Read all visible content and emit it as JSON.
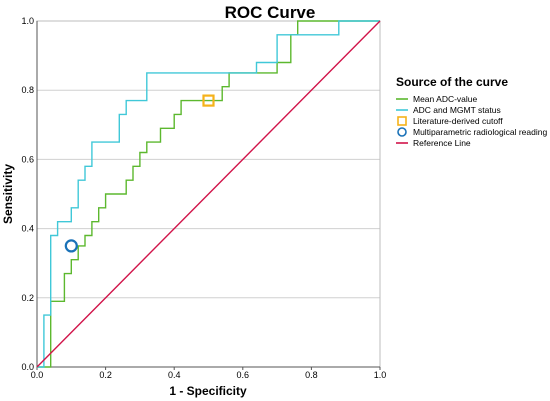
{
  "chart_data": {
    "type": "line",
    "title": "ROC Curve",
    "xlabel": "1 - Specificity",
    "ylabel": "Sensitivity",
    "xlim": [
      0,
      1
    ],
    "ylim": [
      0,
      1
    ],
    "x_ticks": [
      "0.0",
      "0.2",
      "0.4",
      "0.6",
      "0.8",
      "1.0"
    ],
    "y_ticks": [
      "0.0",
      "0.2",
      "0.4",
      "0.6",
      "0.8",
      "1.0"
    ],
    "grid": "horizontal",
    "legend_title": "Source of the curve",
    "legend_position": "right",
    "series": [
      {
        "name": "Mean ADC-value",
        "kind": "step-line",
        "color": "#5cb82e",
        "points": [
          [
            0,
            0
          ],
          [
            0.04,
            0
          ],
          [
            0.04,
            0.19
          ],
          [
            0.08,
            0.19
          ],
          [
            0.08,
            0.27
          ],
          [
            0.1,
            0.27
          ],
          [
            0.1,
            0.31
          ],
          [
            0.12,
            0.31
          ],
          [
            0.12,
            0.35
          ],
          [
            0.14,
            0.35
          ],
          [
            0.14,
            0.38
          ],
          [
            0.16,
            0.38
          ],
          [
            0.16,
            0.42
          ],
          [
            0.18,
            0.42
          ],
          [
            0.18,
            0.46
          ],
          [
            0.2,
            0.46
          ],
          [
            0.2,
            0.5
          ],
          [
            0.26,
            0.5
          ],
          [
            0.26,
            0.54
          ],
          [
            0.28,
            0.54
          ],
          [
            0.28,
            0.58
          ],
          [
            0.3,
            0.58
          ],
          [
            0.3,
            0.62
          ],
          [
            0.32,
            0.62
          ],
          [
            0.32,
            0.65
          ],
          [
            0.36,
            0.65
          ],
          [
            0.36,
            0.69
          ],
          [
            0.4,
            0.69
          ],
          [
            0.4,
            0.73
          ],
          [
            0.42,
            0.73
          ],
          [
            0.42,
            0.77
          ],
          [
            0.54,
            0.77
          ],
          [
            0.54,
            0.81
          ],
          [
            0.56,
            0.81
          ],
          [
            0.56,
            0.85
          ],
          [
            0.7,
            0.85
          ],
          [
            0.7,
            0.88
          ],
          [
            0.74,
            0.88
          ],
          [
            0.74,
            0.96
          ],
          [
            0.76,
            0.96
          ],
          [
            0.76,
            1.0
          ],
          [
            1.0,
            1.0
          ]
        ]
      },
      {
        "name": "ADC and MGMT status",
        "kind": "step-line",
        "color": "#40c8d8",
        "points": [
          [
            0,
            0
          ],
          [
            0.02,
            0
          ],
          [
            0.02,
            0.15
          ],
          [
            0.04,
            0.15
          ],
          [
            0.04,
            0.38
          ],
          [
            0.06,
            0.38
          ],
          [
            0.06,
            0.42
          ],
          [
            0.1,
            0.42
          ],
          [
            0.1,
            0.46
          ],
          [
            0.12,
            0.46
          ],
          [
            0.12,
            0.54
          ],
          [
            0.14,
            0.54
          ],
          [
            0.14,
            0.58
          ],
          [
            0.16,
            0.58
          ],
          [
            0.16,
            0.65
          ],
          [
            0.24,
            0.65
          ],
          [
            0.24,
            0.73
          ],
          [
            0.26,
            0.73
          ],
          [
            0.26,
            0.77
          ],
          [
            0.32,
            0.77
          ],
          [
            0.32,
            0.85
          ],
          [
            0.64,
            0.85
          ],
          [
            0.64,
            0.88
          ],
          [
            0.7,
            0.88
          ],
          [
            0.7,
            0.96
          ],
          [
            0.88,
            0.96
          ],
          [
            0.88,
            1.0
          ],
          [
            1.0,
            1.0
          ]
        ]
      },
      {
        "name": "Literature-derived cutoff",
        "kind": "square-marker",
        "color": "#f5b21a",
        "x": 0.5,
        "y": 0.77
      },
      {
        "name": "Multiparametric radiological reading",
        "kind": "circle-marker",
        "color": "#1a72b8",
        "x": 0.1,
        "y": 0.35
      },
      {
        "name": "Reference Line",
        "kind": "diagonal-line",
        "color": "#d1144a",
        "points": [
          [
            0,
            0
          ],
          [
            1,
            1
          ]
        ]
      }
    ]
  }
}
